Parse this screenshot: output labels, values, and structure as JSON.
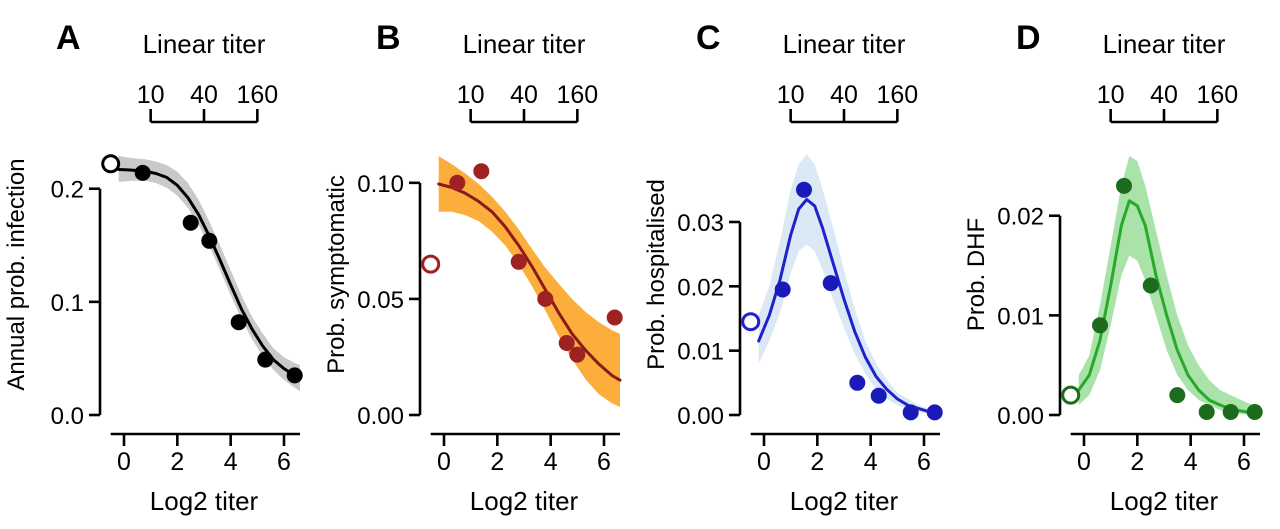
{
  "figure": {
    "background": "#ffffff"
  },
  "chart_data": [
    {
      "type": "scatter",
      "panel": "A",
      "ylabel": "Annual prob. infection",
      "xlabel": "Log2 titer",
      "top_axis": {
        "label": "Linear titer",
        "tick_labels": [
          "10",
          "40",
          "160"
        ],
        "tick_positions": [
          1,
          3,
          5
        ],
        "span": [
          1,
          5
        ]
      },
      "xlim": [
        -0.9,
        6.9
      ],
      "ylim": [
        0,
        0.236
      ],
      "xticks": [
        0,
        2,
        4,
        6
      ],
      "xtick_labels": [
        "0",
        "2",
        "4",
        "6"
      ],
      "yticks": [
        0,
        0.1,
        0.2
      ],
      "ytick_labels": [
        "0.0",
        "0.1",
        "0.2"
      ],
      "x_axis_span": [
        -0.5,
        6.6
      ],
      "open_point": {
        "x": -0.5,
        "y": 0.222
      },
      "points": [
        [
          0.7,
          0.214
        ],
        [
          2.5,
          0.17
        ],
        [
          3.2,
          0.154
        ],
        [
          4.3,
          0.082
        ],
        [
          5.3,
          0.049
        ],
        [
          6.4,
          0.035
        ]
      ],
      "curve": [
        [
          -0.2,
          0.217
        ],
        [
          0.3,
          0.2165
        ],
        [
          0.8,
          0.2155
        ],
        [
          1.2,
          0.2135
        ],
        [
          1.6,
          0.21
        ],
        [
          2.0,
          0.203
        ],
        [
          2.4,
          0.192
        ],
        [
          2.8,
          0.177
        ],
        [
          3.2,
          0.158
        ],
        [
          3.6,
          0.137
        ],
        [
          4.0,
          0.115
        ],
        [
          4.4,
          0.094
        ],
        [
          4.8,
          0.076
        ],
        [
          5.2,
          0.061
        ],
        [
          5.6,
          0.049
        ],
        [
          6.0,
          0.041
        ],
        [
          6.4,
          0.035
        ],
        [
          6.6,
          0.033
        ]
      ],
      "band": [
        [
          -0.2,
          0.206,
          0.229
        ],
        [
          0.3,
          0.207,
          0.227
        ],
        [
          0.8,
          0.207,
          0.226
        ],
        [
          1.2,
          0.205,
          0.224
        ],
        [
          1.6,
          0.201,
          0.221
        ],
        [
          2.0,
          0.194,
          0.215
        ],
        [
          2.4,
          0.183,
          0.205
        ],
        [
          2.8,
          0.168,
          0.19
        ],
        [
          3.2,
          0.149,
          0.171
        ],
        [
          3.6,
          0.128,
          0.15
        ],
        [
          4.0,
          0.106,
          0.128
        ],
        [
          4.4,
          0.085,
          0.106
        ],
        [
          4.8,
          0.067,
          0.087
        ],
        [
          5.2,
          0.052,
          0.072
        ],
        [
          5.6,
          0.04,
          0.059
        ],
        [
          6.0,
          0.031,
          0.051
        ],
        [
          6.4,
          0.024,
          0.046
        ],
        [
          6.6,
          0.021,
          0.044
        ]
      ],
      "colors": {
        "point": "#000000",
        "line": "#000000",
        "band": "#c9c9c9",
        "open": "#000000"
      }
    },
    {
      "type": "scatter",
      "panel": "B",
      "ylabel": "Prob. symptomatic",
      "xlabel": "Log2 titer",
      "top_axis": {
        "label": "Linear titer",
        "tick_labels": [
          "10",
          "40",
          "160"
        ],
        "tick_positions": [
          1,
          3,
          5
        ],
        "span": [
          1,
          5
        ]
      },
      "xlim": [
        -0.9,
        6.9
      ],
      "ylim": [
        0,
        0.115
      ],
      "xticks": [
        0,
        2,
        4,
        6
      ],
      "xtick_labels": [
        "0",
        "2",
        "4",
        "6"
      ],
      "yticks": [
        0,
        0.05,
        0.1
      ],
      "ytick_labels": [
        "0.00",
        "0.05",
        "0.10"
      ],
      "x_axis_span": [
        -0.5,
        6.6
      ],
      "open_point": {
        "x": -0.5,
        "y": 0.065
      },
      "points": [
        [
          0.5,
          0.1
        ],
        [
          1.4,
          0.105
        ],
        [
          2.8,
          0.066
        ],
        [
          3.8,
          0.05
        ],
        [
          4.6,
          0.031
        ],
        [
          5.0,
          0.026
        ],
        [
          6.4,
          0.042
        ]
      ],
      "curve": [
        [
          -0.2,
          0.0995
        ],
        [
          0.3,
          0.098
        ],
        [
          0.8,
          0.0955
        ],
        [
          1.3,
          0.092
        ],
        [
          1.8,
          0.0875
        ],
        [
          2.3,
          0.081
        ],
        [
          2.8,
          0.073
        ],
        [
          3.3,
          0.064
        ],
        [
          3.8,
          0.054
        ],
        [
          4.3,
          0.044
        ],
        [
          4.8,
          0.035
        ],
        [
          5.3,
          0.028
        ],
        [
          5.8,
          0.022
        ],
        [
          6.3,
          0.017
        ],
        [
          6.6,
          0.015
        ]
      ],
      "band": [
        [
          -0.2,
          0.0875,
          0.1115
        ],
        [
          0.3,
          0.0875,
          0.108
        ],
        [
          0.8,
          0.086,
          0.104
        ],
        [
          1.3,
          0.0835,
          0.0995
        ],
        [
          1.8,
          0.079,
          0.094
        ],
        [
          2.3,
          0.073,
          0.0875
        ],
        [
          2.8,
          0.065,
          0.08
        ],
        [
          3.3,
          0.0555,
          0.0715
        ],
        [
          3.8,
          0.045,
          0.0635
        ],
        [
          4.3,
          0.034,
          0.0565
        ],
        [
          4.8,
          0.024,
          0.05
        ],
        [
          5.3,
          0.0155,
          0.0445
        ],
        [
          5.8,
          0.009,
          0.04
        ],
        [
          6.3,
          0.005,
          0.0365
        ],
        [
          6.6,
          0.0035,
          0.035
        ]
      ],
      "colors": {
        "point": "#9e2222",
        "line": "#8b1a1a",
        "band": "#fcae3c",
        "open": "#9e2222"
      }
    },
    {
      "type": "scatter",
      "panel": "C",
      "ylabel": "Prob. hospitalised",
      "xlabel": "Log2 titer",
      "top_axis": {
        "label": "Linear titer",
        "tick_labels": [
          "10",
          "40",
          "160"
        ],
        "tick_positions": [
          1,
          3,
          5
        ],
        "span": [
          1,
          5
        ]
      },
      "xlim": [
        -0.9,
        6.9
      ],
      "ylim": [
        0,
        0.0415
      ],
      "xticks": [
        0,
        2,
        4,
        6
      ],
      "xtick_labels": [
        "0",
        "2",
        "4",
        "6"
      ],
      "yticks": [
        0,
        0.01,
        0.02,
        0.03
      ],
      "ytick_labels": [
        "0.00",
        "0.01",
        "0.02",
        "0.03"
      ],
      "x_axis_span": [
        -0.5,
        6.6
      ],
      "open_point": {
        "x": -0.5,
        "y": 0.0145
      },
      "points": [
        [
          0.7,
          0.0195
        ],
        [
          1.5,
          0.035
        ],
        [
          2.5,
          0.0205
        ],
        [
          3.5,
          0.005
        ],
        [
          4.3,
          0.003
        ],
        [
          5.5,
          0.0004
        ],
        [
          6.4,
          0.0004
        ]
      ],
      "curve": [
        [
          -0.2,
          0.0115
        ],
        [
          0.2,
          0.0155
        ],
        [
          0.6,
          0.021
        ],
        [
          1.0,
          0.028
        ],
        [
          1.3,
          0.032
        ],
        [
          1.6,
          0.0335
        ],
        [
          1.9,
          0.0325
        ],
        [
          2.2,
          0.029
        ],
        [
          2.6,
          0.0235
        ],
        [
          3.0,
          0.018
        ],
        [
          3.4,
          0.013
        ],
        [
          3.8,
          0.009
        ],
        [
          4.2,
          0.006
        ],
        [
          4.6,
          0.004
        ],
        [
          5.0,
          0.0025
        ],
        [
          5.4,
          0.0015
        ],
        [
          5.8,
          0.001
        ],
        [
          6.2,
          0.0005
        ],
        [
          6.6,
          0.0004
        ]
      ],
      "band": [
        [
          -0.2,
          0.008,
          0.0155
        ],
        [
          0.2,
          0.0115,
          0.02
        ],
        [
          0.6,
          0.016,
          0.027
        ],
        [
          1.0,
          0.022,
          0.035
        ],
        [
          1.3,
          0.0255,
          0.039
        ],
        [
          1.6,
          0.0265,
          0.0405
        ],
        [
          1.9,
          0.0255,
          0.039
        ],
        [
          2.2,
          0.0225,
          0.035
        ],
        [
          2.6,
          0.018,
          0.029
        ],
        [
          3.0,
          0.0135,
          0.0225
        ],
        [
          3.4,
          0.0095,
          0.0165
        ],
        [
          3.8,
          0.0065,
          0.0115
        ],
        [
          4.2,
          0.004,
          0.008
        ],
        [
          4.6,
          0.0025,
          0.0055
        ],
        [
          5.0,
          0.0015,
          0.0035
        ],
        [
          5.4,
          0.001,
          0.0025
        ],
        [
          5.8,
          0.0005,
          0.0015
        ],
        [
          6.2,
          0.0002,
          0.001
        ],
        [
          6.6,
          0.0002,
          0.001
        ]
      ],
      "colors": {
        "point": "#1a1ab8",
        "line": "#2121cc",
        "band": "#dbe8f6",
        "open": "#2121cc"
      }
    },
    {
      "type": "scatter",
      "panel": "D",
      "ylabel": "Prob. DHF",
      "xlabel": "Log2 titer",
      "top_axis": {
        "label": "Linear titer",
        "tick_labels": [
          "10",
          "40",
          "160"
        ],
        "tick_positions": [
          1,
          3,
          5
        ],
        "span": [
          1,
          5
        ]
      },
      "xlim": [
        -0.9,
        6.9
      ],
      "ylim": [
        0,
        0.0268
      ],
      "xticks": [
        0,
        2,
        4,
        6
      ],
      "xtick_labels": [
        "0",
        "2",
        "4",
        "6"
      ],
      "yticks": [
        0,
        0.01,
        0.02
      ],
      "ytick_labels": [
        "0.00",
        "0.01",
        "0.02"
      ],
      "x_axis_span": [
        -0.5,
        6.6
      ],
      "open_point": {
        "x": -0.5,
        "y": 0.002
      },
      "points": [
        [
          0.6,
          0.009
        ],
        [
          1.5,
          0.023
        ],
        [
          2.5,
          0.013
        ],
        [
          3.5,
          0.002
        ],
        [
          4.6,
          0.0003
        ],
        [
          5.5,
          0.0003
        ],
        [
          6.4,
          0.0003
        ]
      ],
      "curve": [
        [
          -0.2,
          0.0025
        ],
        [
          0.2,
          0.004
        ],
        [
          0.6,
          0.0075
        ],
        [
          1.0,
          0.013
        ],
        [
          1.4,
          0.019
        ],
        [
          1.7,
          0.0215
        ],
        [
          2.0,
          0.021
        ],
        [
          2.3,
          0.019
        ],
        [
          2.7,
          0.014
        ],
        [
          3.1,
          0.01
        ],
        [
          3.5,
          0.0065
        ],
        [
          3.9,
          0.004
        ],
        [
          4.3,
          0.0025
        ],
        [
          4.7,
          0.0015
        ],
        [
          5.1,
          0.001
        ],
        [
          5.5,
          0.0006
        ],
        [
          5.9,
          0.0004
        ],
        [
          6.3,
          0.0002
        ],
        [
          6.6,
          0.0002
        ]
      ],
      "band": [
        [
          -0.2,
          0.001,
          0.004
        ],
        [
          0.2,
          0.002,
          0.006
        ],
        [
          0.6,
          0.0045,
          0.011
        ],
        [
          1.0,
          0.009,
          0.017
        ],
        [
          1.4,
          0.014,
          0.023
        ],
        [
          1.7,
          0.016,
          0.026
        ],
        [
          2.0,
          0.0155,
          0.0255
        ],
        [
          2.3,
          0.0135,
          0.023
        ],
        [
          2.7,
          0.01,
          0.0185
        ],
        [
          3.1,
          0.0065,
          0.014
        ],
        [
          3.5,
          0.004,
          0.01
        ],
        [
          3.9,
          0.0025,
          0.007
        ],
        [
          4.3,
          0.0015,
          0.005
        ],
        [
          4.7,
          0.001,
          0.0035
        ],
        [
          5.1,
          0.0005,
          0.0025
        ],
        [
          5.5,
          0.0002,
          0.002
        ],
        [
          5.9,
          0.0001,
          0.0015
        ],
        [
          6.3,
          0.0,
          0.001
        ],
        [
          6.6,
          0.0,
          0.001
        ]
      ],
      "colors": {
        "point": "#1d6b1d",
        "line": "#29a829",
        "band": "#a9e3a9",
        "open": "#1d6b1d"
      }
    }
  ]
}
